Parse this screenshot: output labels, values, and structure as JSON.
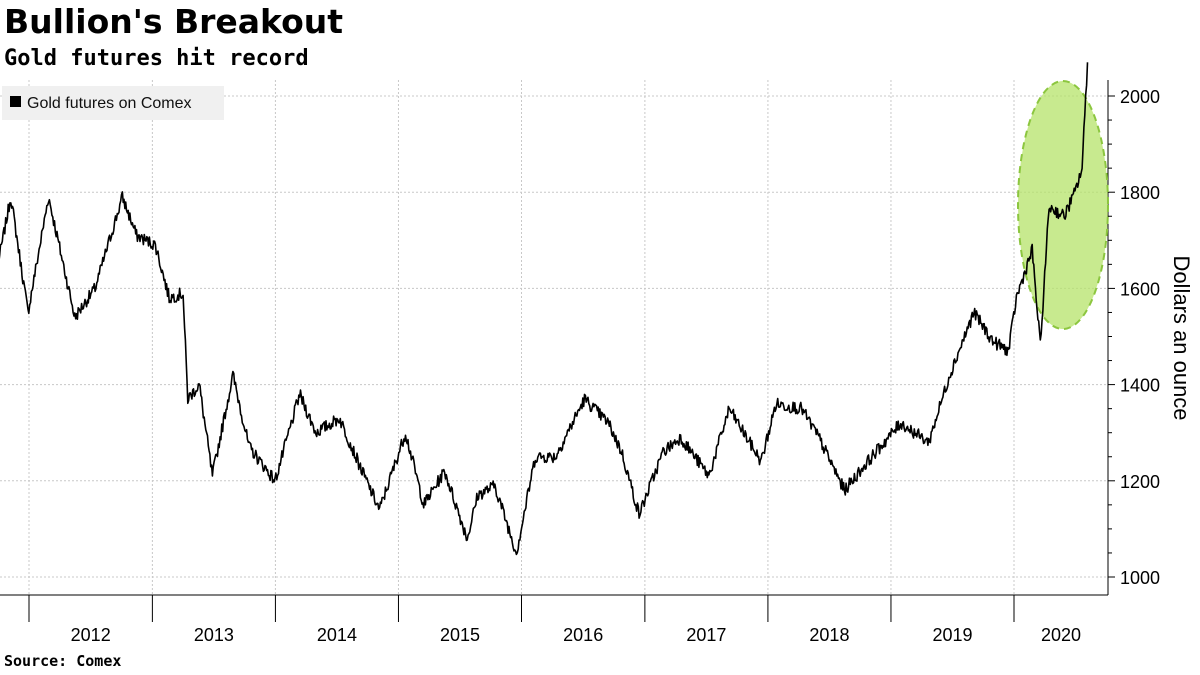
{
  "header": {
    "title": "Bullion's Breakout",
    "subtitle": "Gold futures hit record"
  },
  "footer": {
    "source": "Source: Comex"
  },
  "chart_data": {
    "type": "line",
    "title": "Bullion's Breakout",
    "subtitle": "Gold futures hit record",
    "ylabel": "Dollars an ounce",
    "xlabel": "",
    "ylim": [
      960,
      2030
    ],
    "xlim": [
      "2011-10-01",
      "2020-08-10"
    ],
    "yticks": [
      1000,
      1200,
      1400,
      1600,
      1800,
      2000
    ],
    "xticks": [
      "2012",
      "2013",
      "2014",
      "2015",
      "2016",
      "2017",
      "2018",
      "2019",
      "2020"
    ],
    "grid": true,
    "legend_position": "top-left",
    "highlight_color": "#b6e36a",
    "line_color": "#000000",
    "series": [
      {
        "name": "Gold futures on Comex",
        "x": [
          "2011-10-01",
          "2011-11-08",
          "2011-12-29",
          "2012-02-28",
          "2012-05-16",
          "2012-07-15",
          "2012-10-04",
          "2012-11-15",
          "2013-01-10",
          "2013-02-20",
          "2013-04-02",
          "2013-04-16",
          "2013-05-20",
          "2013-06-28",
          "2013-08-28",
          "2013-10-15",
          "2013-12-31",
          "2014-03-14",
          "2014-05-01",
          "2014-07-10",
          "2014-09-15",
          "2014-11-06",
          "2015-01-22",
          "2015-03-17",
          "2015-05-18",
          "2015-07-24",
          "2015-08-24",
          "2015-10-14",
          "2015-12-17",
          "2016-02-11",
          "2016-04-11",
          "2016-07-06",
          "2016-09-15",
          "2016-10-24",
          "2016-12-15",
          "2017-02-24",
          "2017-04-17",
          "2017-07-10",
          "2017-09-08",
          "2017-12-12",
          "2018-01-25",
          "2018-04-11",
          "2018-06-01",
          "2018-08-16",
          "2018-10-24",
          "2019-01-30",
          "2019-04-23",
          "2019-06-24",
          "2019-09-04",
          "2019-10-30",
          "2019-12-16",
          "2020-01-08",
          "2020-02-24",
          "2020-03-19",
          "2020-04-14",
          "2020-05-29",
          "2020-06-30",
          "2020-07-21",
          "2020-08-06"
        ],
        "y": [
          1650,
          1790,
          1550,
          1790,
          1540,
          1600,
          1790,
          1710,
          1690,
          1580,
          1590,
          1370,
          1400,
          1210,
          1420,
          1270,
          1200,
          1380,
          1300,
          1330,
          1220,
          1140,
          1300,
          1150,
          1220,
          1080,
          1170,
          1190,
          1050,
          1250,
          1250,
          1370,
          1320,
          1260,
          1130,
          1260,
          1290,
          1210,
          1350,
          1240,
          1360,
          1350,
          1290,
          1180,
          1240,
          1320,
          1280,
          1420,
          1550,
          1490,
          1470,
          1580,
          1680,
          1480,
          1770,
          1750,
          1800,
          1850,
          2070
        ]
      }
    ]
  }
}
